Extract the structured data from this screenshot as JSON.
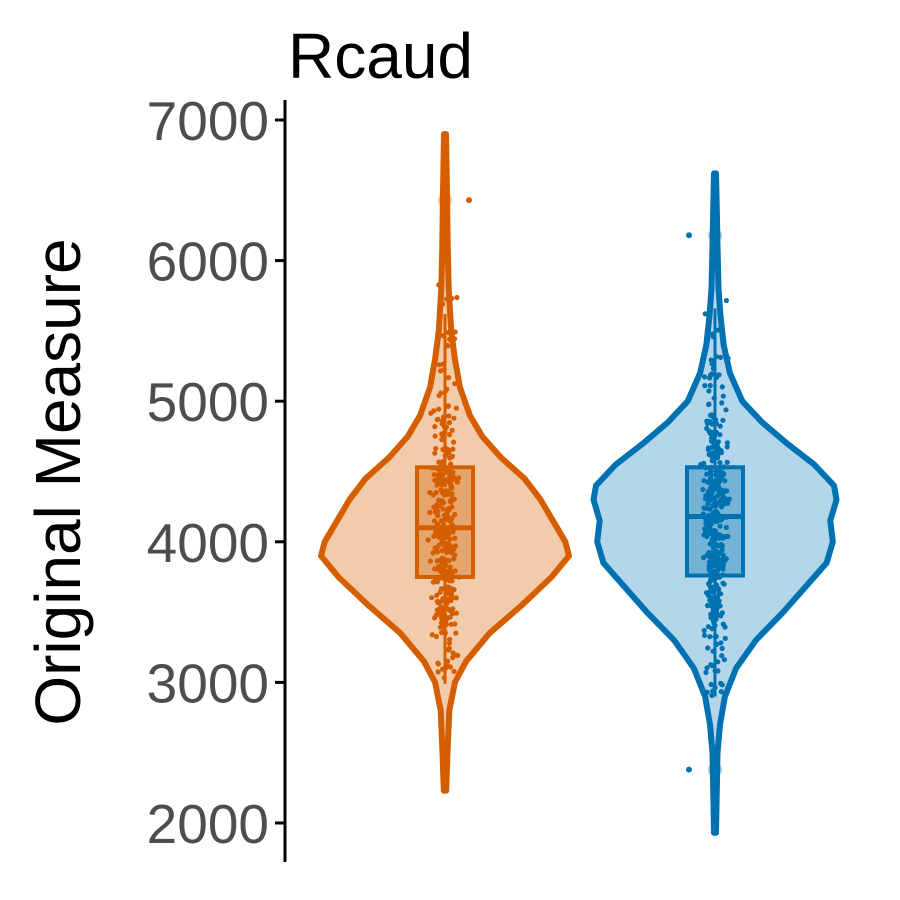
{
  "chart_data": {
    "type": "violin",
    "title": "Rcaud",
    "xlabel": "",
    "ylabel": "Original Measure",
    "ylim": [
      1750,
      7150
    ],
    "yticks": [
      2000,
      3000,
      4000,
      5000,
      6000,
      7000
    ],
    "ytick_labels": [
      "2000",
      "3000",
      "4000",
      "5000",
      "6000",
      "7000"
    ],
    "grid": false,
    "legend": "none",
    "series": [
      {
        "color": "#D55E00",
        "fill": "#F2CBAA",
        "min": 2230,
        "max": 6900,
        "q1": 3750,
        "median": 4100,
        "q3": 4530,
        "whisker_low": 2990,
        "whisker_high": 5620,
        "outliers": [
          6430
        ],
        "density": [
          [
            2230,
            0.01
          ],
          [
            2500,
            0.02
          ],
          [
            2800,
            0.035
          ],
          [
            3000,
            0.08
          ],
          [
            3150,
            0.17
          ],
          [
            3350,
            0.36
          ],
          [
            3550,
            0.62
          ],
          [
            3750,
            0.86
          ],
          [
            3900,
            1.0
          ],
          [
            4000,
            0.97
          ],
          [
            4150,
            0.87
          ],
          [
            4300,
            0.77
          ],
          [
            4450,
            0.64
          ],
          [
            4600,
            0.45
          ],
          [
            4750,
            0.3
          ],
          [
            4900,
            0.2
          ],
          [
            5100,
            0.12
          ],
          [
            5300,
            0.08
          ],
          [
            5500,
            0.05
          ],
          [
            5800,
            0.03
          ],
          [
            6100,
            0.022
          ],
          [
            6400,
            0.018
          ],
          [
            6700,
            0.012
          ],
          [
            6900,
            0.008
          ]
        ]
      },
      {
        "color": "#0072B2",
        "fill": "#B3D6EA",
        "min": 1930,
        "max": 6620,
        "q1": 3760,
        "median": 4180,
        "q3": 4530,
        "whisker_low": 2900,
        "whisker_high": 5660,
        "outliers": [
          2380,
          6180
        ],
        "density": [
          [
            1930,
            0.008
          ],
          [
            2200,
            0.014
          ],
          [
            2500,
            0.02
          ],
          [
            2700,
            0.04
          ],
          [
            2900,
            0.08
          ],
          [
            3100,
            0.17
          ],
          [
            3300,
            0.33
          ],
          [
            3500,
            0.55
          ],
          [
            3700,
            0.75
          ],
          [
            3850,
            0.9
          ],
          [
            4000,
            0.95
          ],
          [
            4150,
            0.93
          ],
          [
            4300,
            0.98
          ],
          [
            4400,
            0.96
          ],
          [
            4550,
            0.8
          ],
          [
            4700,
            0.58
          ],
          [
            4850,
            0.38
          ],
          [
            5000,
            0.22
          ],
          [
            5200,
            0.12
          ],
          [
            5400,
            0.07
          ],
          [
            5600,
            0.045
          ],
          [
            5800,
            0.028
          ],
          [
            6100,
            0.02
          ],
          [
            6400,
            0.014
          ],
          [
            6620,
            0.008
          ]
        ]
      }
    ]
  }
}
